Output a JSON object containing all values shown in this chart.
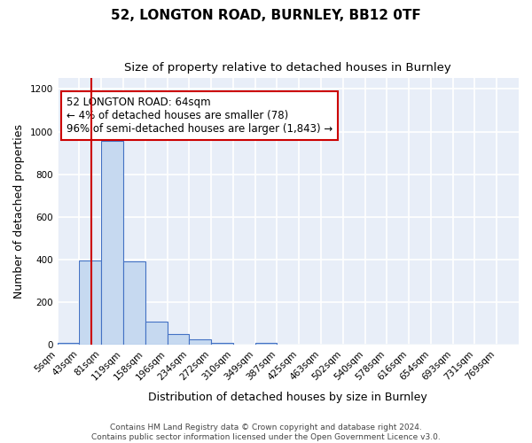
{
  "title": "52, LONGTON ROAD, BURNLEY, BB12 0TF",
  "subtitle": "Size of property relative to detached houses in Burnley",
  "xlabel": "Distribution of detached houses by size in Burnley",
  "ylabel": "Number of detached properties",
  "bin_labels": [
    "5sqm",
    "43sqm",
    "81sqm",
    "119sqm",
    "158sqm",
    "196sqm",
    "234sqm",
    "272sqm",
    "310sqm",
    "349sqm",
    "387sqm",
    "425sqm",
    "463sqm",
    "502sqm",
    "540sqm",
    "578sqm",
    "616sqm",
    "654sqm",
    "693sqm",
    "731sqm",
    "769sqm"
  ],
  "bar_heights": [
    10,
    395,
    955,
    390,
    107,
    52,
    25,
    10,
    0,
    10,
    0,
    0,
    0,
    0,
    0,
    0,
    0,
    0,
    0,
    0,
    0
  ],
  "bar_color": "#c6d9f0",
  "bar_edge_color": "#4472c4",
  "vline_color": "#cc0000",
  "ylim": [
    0,
    1250
  ],
  "yticks": [
    0,
    200,
    400,
    600,
    800,
    1000,
    1200
  ],
  "annotation_line1": "52 LONGTON ROAD: 64sqm",
  "annotation_line2": "← 4% of detached houses are smaller (78)",
  "annotation_line3": "96% of semi-detached houses are larger (1,843) →",
  "footer_text": "Contains HM Land Registry data © Crown copyright and database right 2024.\nContains public sector information licensed under the Open Government Licence v3.0.",
  "bg_color": "#ffffff",
  "plot_bg_color": "#e8eef8",
  "grid_color": "#ffffff",
  "title_fontsize": 11,
  "subtitle_fontsize": 9.5,
  "tick_fontsize": 7.5,
  "ylabel_fontsize": 9,
  "xlabel_fontsize": 9,
  "annotation_fontsize": 8.5,
  "footer_fontsize": 6.5
}
